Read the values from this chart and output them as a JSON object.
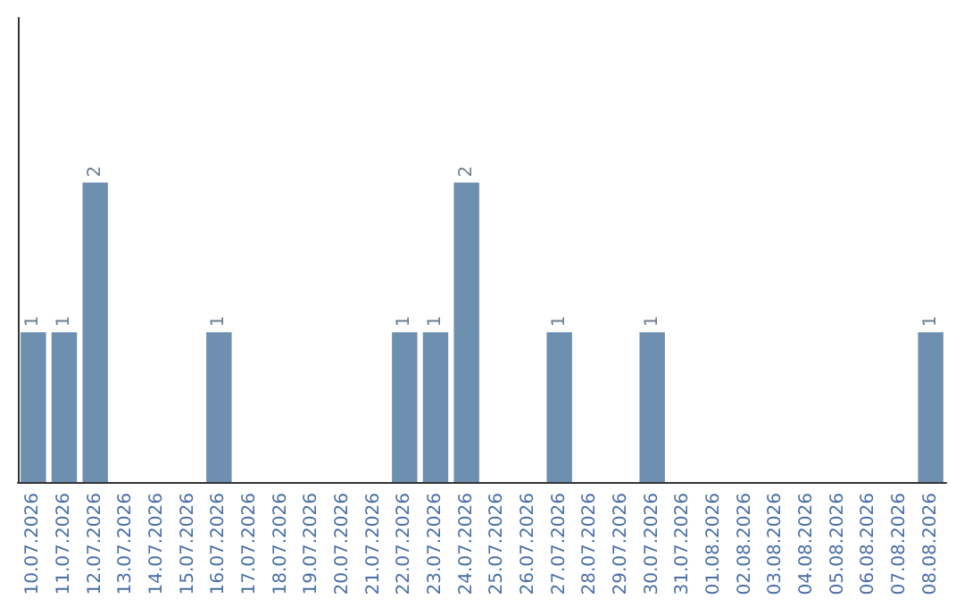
{
  "chart_data": {
    "type": "bar",
    "categories": [
      "10.07.2026",
      "11.07.2026",
      "12.07.2026",
      "13.07.2026",
      "14.07.2026",
      "15.07.2026",
      "16.07.2026",
      "17.07.2026",
      "18.07.2026",
      "19.07.2026",
      "20.07.2026",
      "21.07.2026",
      "22.07.2026",
      "23.07.2026",
      "24.07.2026",
      "25.07.2026",
      "26.07.2026",
      "27.07.2026",
      "28.07.2026",
      "29.07.2026",
      "30.07.2026",
      "31.07.2026",
      "01.08.2026",
      "02.08.2026",
      "03.08.2026",
      "04.08.2026",
      "05.08.2026",
      "06.08.2026",
      "07.08.2026",
      "08.08.2026"
    ],
    "values": [
      1,
      1,
      2,
      0,
      0,
      0,
      1,
      0,
      0,
      0,
      0,
      0,
      1,
      1,
      2,
      0,
      0,
      1,
      0,
      0,
      1,
      0,
      0,
      0,
      0,
      0,
      0,
      0,
      0,
      1
    ],
    "value_labels": [
      "1",
      "1",
      "2",
      null,
      null,
      null,
      "1",
      null,
      null,
      null,
      null,
      null,
      "1",
      "1",
      "2",
      null,
      null,
      "1",
      null,
      null,
      "1",
      null,
      null,
      null,
      null,
      null,
      null,
      null,
      null,
      "1"
    ],
    "color": "#6d8fb0",
    "ylim": [
      0,
      3.1
    ],
    "tick_labels": "x"
  }
}
